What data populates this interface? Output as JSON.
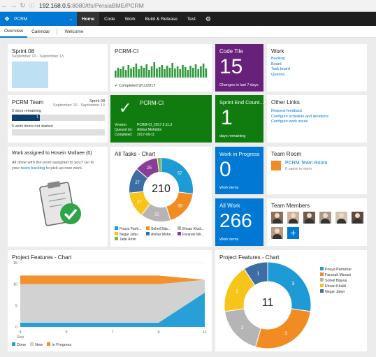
{
  "browser": {
    "url_host": "192.168.0.5",
    "url_path": ":8080/tfs/PersiaBME/PCRM"
  },
  "nav": {
    "project": "PCRM",
    "items": [
      "Home",
      "Code",
      "Work",
      "Build & Release",
      "Test"
    ]
  },
  "subnav": {
    "items": [
      "Overview",
      "Calendar"
    ],
    "welcome": "Welcome"
  },
  "sprint": {
    "title": "Sprint 08",
    "dates": "September 10 - September 13"
  },
  "ci1": {
    "title": "PCRM-CI",
    "status": "Completed 9/11/2017"
  },
  "code_tile": {
    "title": "Code Tile",
    "value": "15",
    "caption": "Changes in last 7 days",
    "color": "#68217a"
  },
  "work": {
    "title": "Work",
    "links": [
      "Backlog",
      "Board",
      "Task board",
      "Queries"
    ]
  },
  "team": {
    "title": "PCRM Team",
    "sprint": "Sprint 08",
    "dates": "September 10 - September 13",
    "days": "3 days remaining",
    "bar_value": "1",
    "not_started": "5 work items not started"
  },
  "ci2": {
    "title": "PCRM-CI",
    "version_label": "Version:",
    "version": "PCRM-CI_2017.9.11.3",
    "queued_label": "Queued by:",
    "queued": "Afshar Mohebbi",
    "completed_label": "Completed:",
    "completed": "2017-09-11",
    "color": "#107c10"
  },
  "sprint_end": {
    "title": "Sprint End Count...",
    "value": "1",
    "caption": "days remaining",
    "color": "#107c10"
  },
  "other_links": {
    "title": "Other Links",
    "links": [
      "Request feedback",
      "Configure schedule and iterations",
      "Configure work areas"
    ]
  },
  "assigned": {
    "title": "Work assigned to Hosein Mollaee (0)",
    "text1": "All done with the work assigned to you? Go to",
    "text2a": "your ",
    "link": "team backlog",
    "text2b": " to pick up new work."
  },
  "all_tasks": {
    "title": "All Tasks - Chart",
    "total": "210",
    "legend": [
      "Pouya Parhi...",
      "Soheil Bija...",
      "Ehsan Khali...",
      "Negar Jafar...",
      "Afshar Mohe...",
      "Faranak Mir...",
      "Jafar Amiri"
    ]
  },
  "wip": {
    "title": "Work in Progress",
    "value": "0",
    "caption": "Work items",
    "color": "#0078d4"
  },
  "all_work": {
    "title": "All Work",
    "value": "266",
    "caption": "Work items",
    "color": "#0078d4"
  },
  "team_room": {
    "title": "Team Room",
    "name": "PCRM Team Room",
    "users": "0 users in room"
  },
  "members": {
    "title": "Team Members"
  },
  "pf1": {
    "title": "Project Features - Chart",
    "legend": [
      "Done",
      "New",
      "In Progress"
    ]
  },
  "pf2": {
    "title": "Project Features - Chart",
    "total": "11",
    "legend": [
      "Pouya Parhizkar",
      "Faranak Mirzaei",
      "Soheil Bijavar",
      "Ehsan Khalili",
      "Negar Jafari"
    ]
  },
  "chart_data": [
    {
      "type": "pie",
      "title": "All Tasks - Chart",
      "categories": [
        "Pouya Parhi...",
        "Soheil Bija...",
        "Ehsan Khali...",
        "Negar Jafar...",
        "Afshar Mohe...",
        "Faranak Mir...",
        "Jafar Amiri"
      ],
      "values": [
        57,
        38,
        32,
        27,
        27,
        25,
        4
      ],
      "colors": [
        "#1e9ad6",
        "#f18c22",
        "#b5b5b5",
        "#f7c419",
        "#3c6ea5",
        "#8a3d96",
        "#7cb342"
      ]
    },
    {
      "type": "area",
      "title": "Project Features - Chart",
      "x": [
        3,
        5,
        7,
        9,
        11
      ],
      "x_tick_labels": [
        "3",
        "5",
        "7",
        "9",
        "11"
      ],
      "x_sublabel": "Sep",
      "ylim": [
        0,
        15
      ],
      "yticks": [
        0,
        5,
        10,
        15
      ],
      "series": [
        {
          "name": "Done",
          "values": [
            1,
            1,
            1,
            1,
            8
          ]
        },
        {
          "name": "New",
          "values": [
            9,
            9,
            9,
            9,
            3
          ]
        },
        {
          "name": "In Progress",
          "values": [
            2,
            2,
            2,
            2,
            0
          ]
        }
      ],
      "colors": [
        "#1e9ad6",
        "#d0d0d0",
        "#f18c22"
      ]
    },
    {
      "type": "pie",
      "title": "Project Features - Chart",
      "categories": [
        "Pouya Parhizkar",
        "Faranak Mirzaei",
        "Soheil Bijavar",
        "Ehsan Khalili",
        "Negar Jafari"
      ],
      "values": [
        3,
        3,
        2,
        2,
        1
      ],
      "colors": [
        "#1e9ad6",
        "#f18c22",
        "#b5b5b5",
        "#f7c419",
        "#3c6ea5"
      ]
    }
  ]
}
